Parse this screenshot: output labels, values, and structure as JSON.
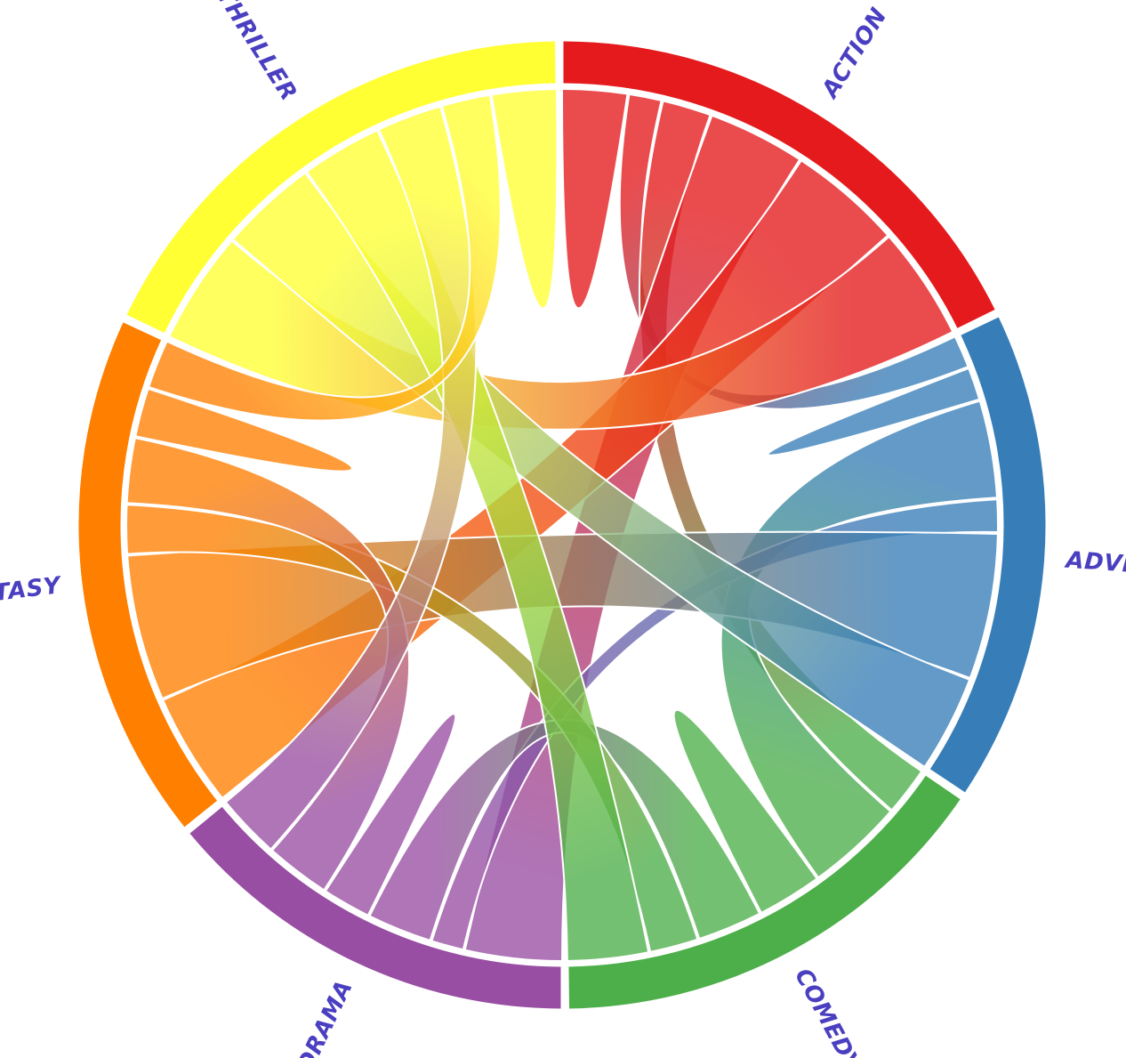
{
  "chart_data": {
    "type": "chord",
    "title": "",
    "groups": [
      {
        "name": "ACTION",
        "color": "#e41a1c"
      },
      {
        "name": "ADVENTURE",
        "color": "#377eb8"
      },
      {
        "name": "COMEDY",
        "color": "#4daf4a"
      },
      {
        "name": "DRAMA",
        "color": "#984ea3"
      },
      {
        "name": "FANTASY",
        "color": "#ff7f00"
      },
      {
        "name": "THRILLER",
        "color": "#ffff33"
      }
    ],
    "matrix": [
      [
        4,
        2,
        3,
        6,
        7,
        7
      ],
      [
        2,
        2,
        6,
        2,
        9,
        6
      ],
      [
        3,
        6,
        4,
        4,
        3,
        5
      ],
      [
        6,
        2,
        4,
        3,
        4,
        4
      ],
      [
        7,
        9,
        3,
        4,
        3,
        3
      ],
      [
        7,
        6,
        5,
        4,
        3,
        4
      ]
    ]
  }
}
